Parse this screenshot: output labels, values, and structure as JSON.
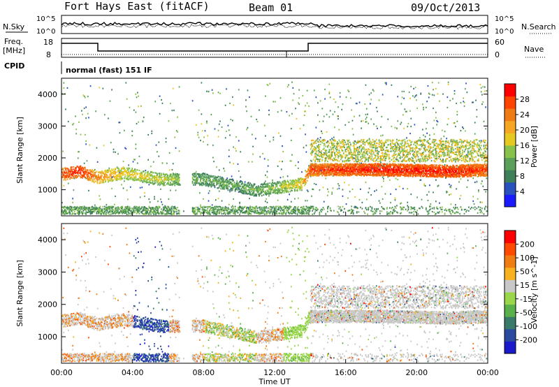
{
  "header": {
    "station": "Fort Hays East (fitACF)",
    "beam": "Beam 01",
    "date": "09/Oct/2013"
  },
  "top_panels": {
    "nsky_label": "N.Sky",
    "nsearch_label": "N.Search",
    "noise_ticks": [
      "10^5",
      "10^0"
    ],
    "freq_label": "Freq.",
    "freq_unit": "[MHz]",
    "freq_ticks": [
      "18",
      "8"
    ],
    "nave_label": "Nave",
    "nave_ticks": [
      "60",
      "0"
    ],
    "cpid_label": "CPID",
    "cpid_value": "normal (fast) 151 IF"
  },
  "colors": {
    "power_scale": [
      "#1a1aff",
      "#2a52be",
      "#3f7f5a",
      "#5aa05a",
      "#88c24a",
      "#e6c81e",
      "#f5a623",
      "#f07a14",
      "#ff4400",
      "#ff0000"
    ],
    "velocity_scale": [
      "#1a1acc",
      "#2a4aa0",
      "#3a7a6a",
      "#5ab04a",
      "#9ad64a",
      "#c8c8c8",
      "#f7b21e",
      "#f07d14",
      "#ff4a00",
      "#ff0000"
    ]
  },
  "chart_data": [
    {
      "type": "heatmap",
      "xlabel": "",
      "ylabel": "Slant Range [km]",
      "x_tick_labels": [
        "00:00",
        "04:00",
        "08:00",
        "12:00",
        "16:00",
        "20:00",
        "00:00"
      ],
      "x_range_hours": [
        0,
        24
      ],
      "y_ticks": [
        1000,
        2000,
        3000,
        4000
      ],
      "ylim": [
        180,
        4500
      ],
      "colorbar": {
        "label": "Power [dB]",
        "ticks": [
          4,
          8,
          12,
          16,
          20,
          24,
          28
        ],
        "range": [
          0,
          30
        ]
      },
      "echo_band": [
        {
          "t": 0.0,
          "range": 1500,
          "power": 26
        },
        {
          "t": 1.0,
          "range": 1600,
          "power": 28
        },
        {
          "t": 2.0,
          "range": 1400,
          "power": 22
        },
        {
          "t": 3.5,
          "range": 1550,
          "power": 18
        },
        {
          "t": 5.5,
          "range": 1350,
          "power": 16
        },
        {
          "t": 8.0,
          "range": 1350,
          "power": 12
        },
        {
          "t": 11.0,
          "range": 1000,
          "power": 12
        },
        {
          "t": 13.5,
          "range": 1200,
          "power": 18
        },
        {
          "t": 14.0,
          "range": 1650,
          "power": 26
        },
        {
          "t": 18.0,
          "range": 1650,
          "power": 28
        },
        {
          "t": 22.0,
          "range": 1600,
          "power": 28
        },
        {
          "t": 24.0,
          "range": 1650,
          "power": 26
        }
      ]
    },
    {
      "type": "heatmap",
      "xlabel": "Time UT",
      "ylabel": "Slant Range [km]",
      "x_tick_labels": [
        "00:00",
        "04:00",
        "08:00",
        "12:00",
        "16:00",
        "20:00",
        "00:00"
      ],
      "x_range_hours": [
        0,
        24
      ],
      "y_ticks": [
        1000,
        2000,
        3000,
        4000
      ],
      "ylim": [
        180,
        4500
      ],
      "colorbar": {
        "label": "Velocity [m s^-1]",
        "ticks": [
          "200",
          "100",
          "50",
          "15",
          "-15",
          "-50",
          "-100",
          "-200"
        ],
        "range": [
          -250,
          250
        ]
      }
    }
  ]
}
